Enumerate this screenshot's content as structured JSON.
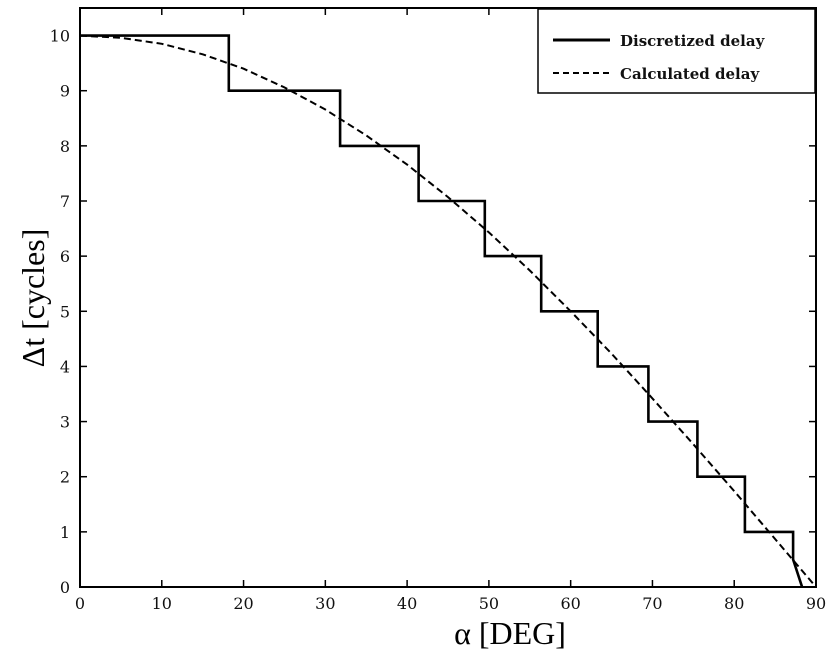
{
  "chart_data": {
    "type": "line",
    "xlabel": "α [DEG]",
    "ylabel": "Δt [cycles]",
    "xlim": [
      0,
      90
    ],
    "ylim": [
      0,
      10.5
    ],
    "x_ticks": [
      0,
      10,
      20,
      30,
      40,
      50,
      60,
      70,
      80,
      90
    ],
    "y_ticks": [
      0,
      1,
      2,
      3,
      4,
      5,
      6,
      7,
      8,
      9,
      10
    ],
    "grid": false,
    "legend_position": "top-right",
    "series": [
      {
        "name": "Discretized delay",
        "style": "solid",
        "x": [
          0,
          18.2,
          18.2,
          31.8,
          31.8,
          41.4,
          41.4,
          49.5,
          49.5,
          56.4,
          56.4,
          63.3,
          63.3,
          69.5,
          69.5,
          75.5,
          75.5,
          81.3,
          81.3,
          87.2,
          87.2,
          88.3
        ],
        "y": [
          10,
          10,
          9,
          9,
          8,
          8,
          7,
          7,
          6,
          6,
          5,
          5,
          4,
          4,
          3,
          3,
          2,
          2,
          1,
          1,
          0.5,
          0
        ]
      },
      {
        "name": "Calculated delay",
        "style": "dashed",
        "x": [
          0,
          5,
          10,
          15,
          20,
          25,
          30,
          35,
          40,
          45,
          50,
          55,
          60,
          65,
          70,
          75,
          80,
          85,
          90
        ],
        "y": [
          10,
          9.96,
          9.85,
          9.66,
          9.4,
          9.06,
          8.66,
          8.19,
          7.66,
          7.07,
          6.43,
          5.74,
          5.0,
          4.23,
          3.42,
          2.59,
          1.74,
          0.87,
          0
        ]
      }
    ]
  }
}
